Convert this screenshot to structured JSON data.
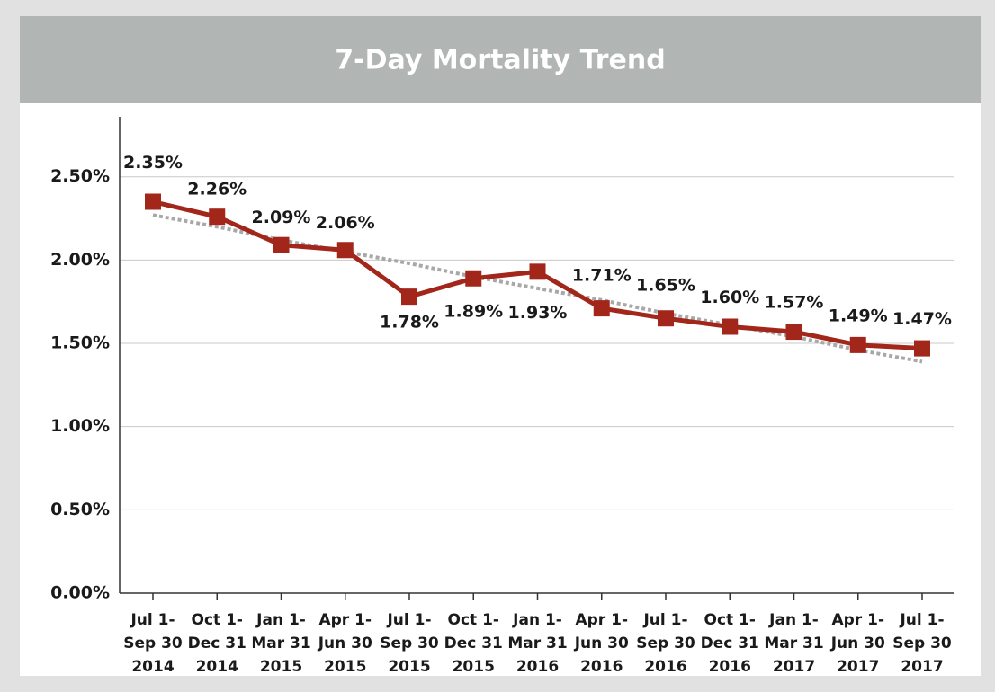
{
  "chart_data": {
    "type": "line",
    "title": "7-Day Mortality Trend",
    "categories": [
      [
        "Jul 1-",
        "Sep 30",
        "2014"
      ],
      [
        "Oct 1-",
        "Dec 31",
        "2014"
      ],
      [
        "Jan 1-",
        "Mar 31",
        "2015"
      ],
      [
        "Apr 1-",
        "Jun 30",
        "2015"
      ],
      [
        "Jul 1-",
        "Sep 30",
        "2015"
      ],
      [
        "Oct 1-",
        "Dec 31",
        "2015"
      ],
      [
        "Jan 1-",
        "Mar 31",
        "2016"
      ],
      [
        "Apr 1-",
        "Jun 30",
        "2016"
      ],
      [
        "Jul 1-",
        "Sep 30",
        "2016"
      ],
      [
        "Oct 1-",
        "Dec 31",
        "2016"
      ],
      [
        "Jan 1-",
        "Mar 31",
        "2017"
      ],
      [
        "Apr 1-",
        "Jun 30",
        "2017"
      ],
      [
        "Jul 1-",
        "Sep 30",
        "2017"
      ]
    ],
    "values": [
      2.35,
      2.26,
      2.09,
      2.06,
      1.78,
      1.89,
      1.93,
      1.71,
      1.65,
      1.6,
      1.57,
      1.49,
      1.47
    ],
    "value_labels": [
      "2.35%",
      "2.26%",
      "2.09%",
      "2.06%",
      "1.78%",
      "1.89%",
      "1.93%",
      "1.71%",
      "1.65%",
      "1.60%",
      "1.57%",
      "1.49%",
      "1.47%"
    ],
    "color": "#a3261b",
    "trendline": {
      "color": "#a8a8a8",
      "values": [
        2.27,
        2.2,
        2.12,
        2.05,
        1.98,
        1.9,
        1.83,
        1.76,
        1.68,
        1.61,
        1.54,
        1.46,
        1.39
      ]
    },
    "ylim": [
      0,
      2.86
    ],
    "yticks": [
      {
        "value": 0,
        "label": "0.00%"
      },
      {
        "value": 0.5,
        "label": "0.50%"
      },
      {
        "value": 1,
        "label": "1.00%"
      },
      {
        "value": 1.5,
        "label": "1.50%"
      },
      {
        "value": 2,
        "label": "2.00%"
      },
      {
        "value": 2.5,
        "label": "2.50%"
      }
    ],
    "grid": true
  }
}
